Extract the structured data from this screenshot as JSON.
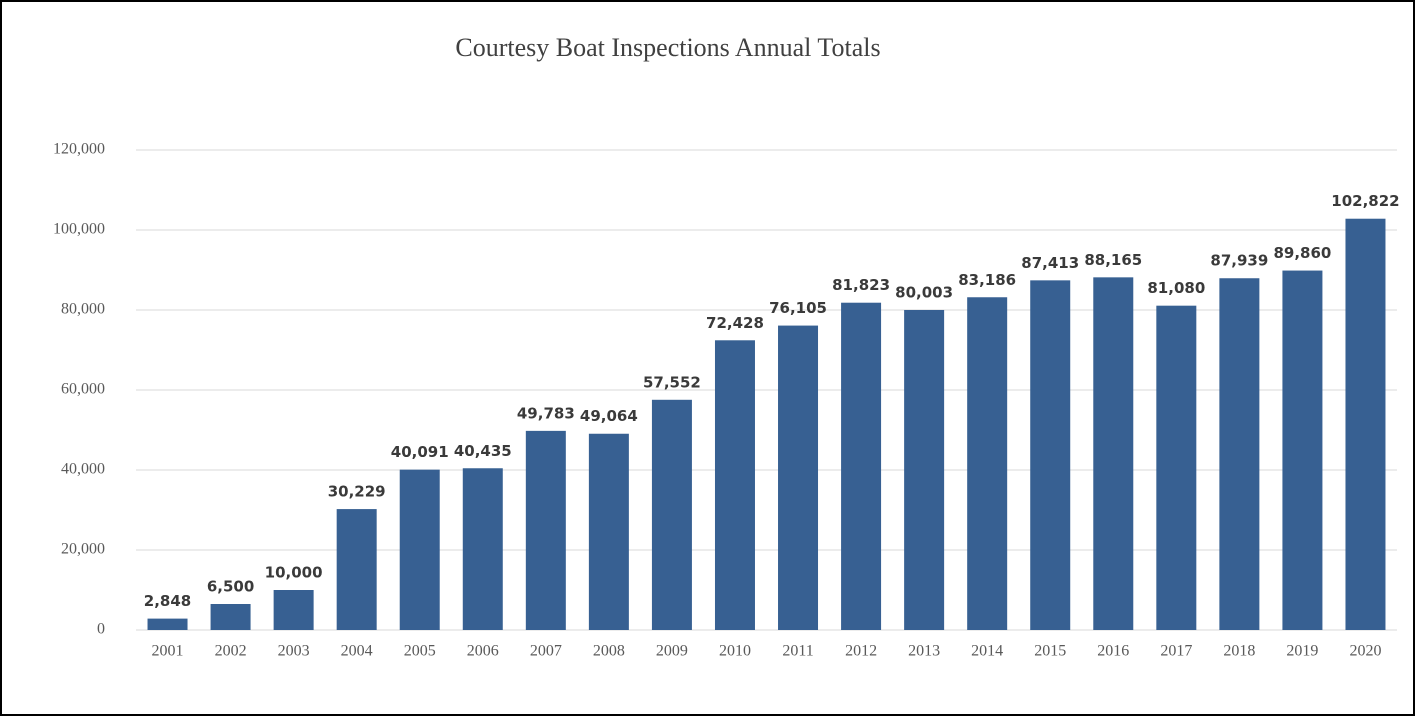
{
  "chart_data": {
    "type": "bar",
    "title": "Courtesy Boat Inspections Annual Totals",
    "categories": [
      "2001",
      "2002",
      "2003",
      "2004",
      "2005",
      "2006",
      "2007",
      "2008",
      "2009",
      "2010",
      "2011",
      "2012",
      "2013",
      "2014",
      "2015",
      "2016",
      "2017",
      "2018",
      "2019",
      "2020"
    ],
    "values": [
      2848,
      6500,
      10000,
      30229,
      40091,
      40435,
      49783,
      49064,
      57552,
      72428,
      76105,
      81823,
      80003,
      83186,
      87413,
      88165,
      81080,
      87939,
      89860,
      102822
    ],
    "value_labels": [
      "2,848",
      "6,500",
      "10,000",
      "30,229",
      "40,091",
      "40,435",
      "49,783",
      "49,064",
      "57,552",
      "72,428",
      "76,105",
      "81,823",
      "80,003",
      "83,186",
      "87,413",
      "88,165",
      "81,080",
      "87,939",
      "89,860",
      "102,822"
    ],
    "color": "#376092",
    "ylim": [
      0,
      120000
    ],
    "yticks": [
      0,
      {
        "value": 20000,
        "label": "20,000"
      },
      {
        "value": 40000,
        "label": "40,000"
      },
      {
        "value": 60000,
        "label": "60,000"
      },
      {
        "value": 80000,
        "label": "80,000"
      },
      {
        "value": 100000,
        "label": "100,000"
      },
      {
        "value": 120000,
        "label": "120,000"
      }
    ],
    "grid": true
  }
}
